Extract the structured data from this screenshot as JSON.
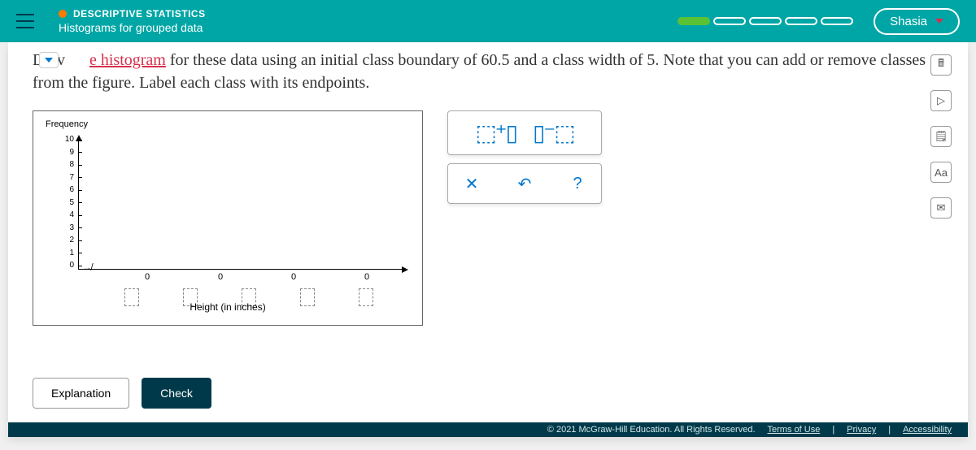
{
  "header": {
    "category": "DESCRIPTIVE STATISTICS",
    "subtitle": "Histograms for grouped data",
    "user": "Shasia",
    "progress_total": 5,
    "progress_filled": 1,
    "accent_color": "#00a6a6",
    "dot_color": "#ff7a00"
  },
  "instruction": {
    "prefix_cut": "Drav",
    "link_text": "e histogram",
    "text_rest": " for these data using an initial class boundary of 60.5 and a class width of 5. Note that you can add or remove classes from the figure. Label each class with its endpoints."
  },
  "chart": {
    "y_label": "Frequency",
    "x_label": "Height (in inches)",
    "y_ticks": [
      10,
      9,
      8,
      7,
      6,
      5,
      4,
      3,
      2,
      1,
      0
    ],
    "y_max": 10,
    "x_values": [
      "0",
      "0",
      "0",
      "0"
    ],
    "x_input_count": 5
  },
  "tools": {
    "add_bar_glyph": "⬚⁺▯",
    "remove_bar_glyph": "▯⁻⬚",
    "clear": "✕",
    "undo": "↶",
    "help": "?"
  },
  "buttons": {
    "explanation": "Explanation",
    "check": "Check"
  },
  "side_icons": [
    "calc",
    "play",
    "note",
    "Aa",
    "mail"
  ],
  "footer": {
    "copyright": "© 2021 McGraw-Hill Education. All Rights Reserved.",
    "terms": "Terms of Use",
    "privacy": "Privacy",
    "accessibility": "Accessibility"
  }
}
